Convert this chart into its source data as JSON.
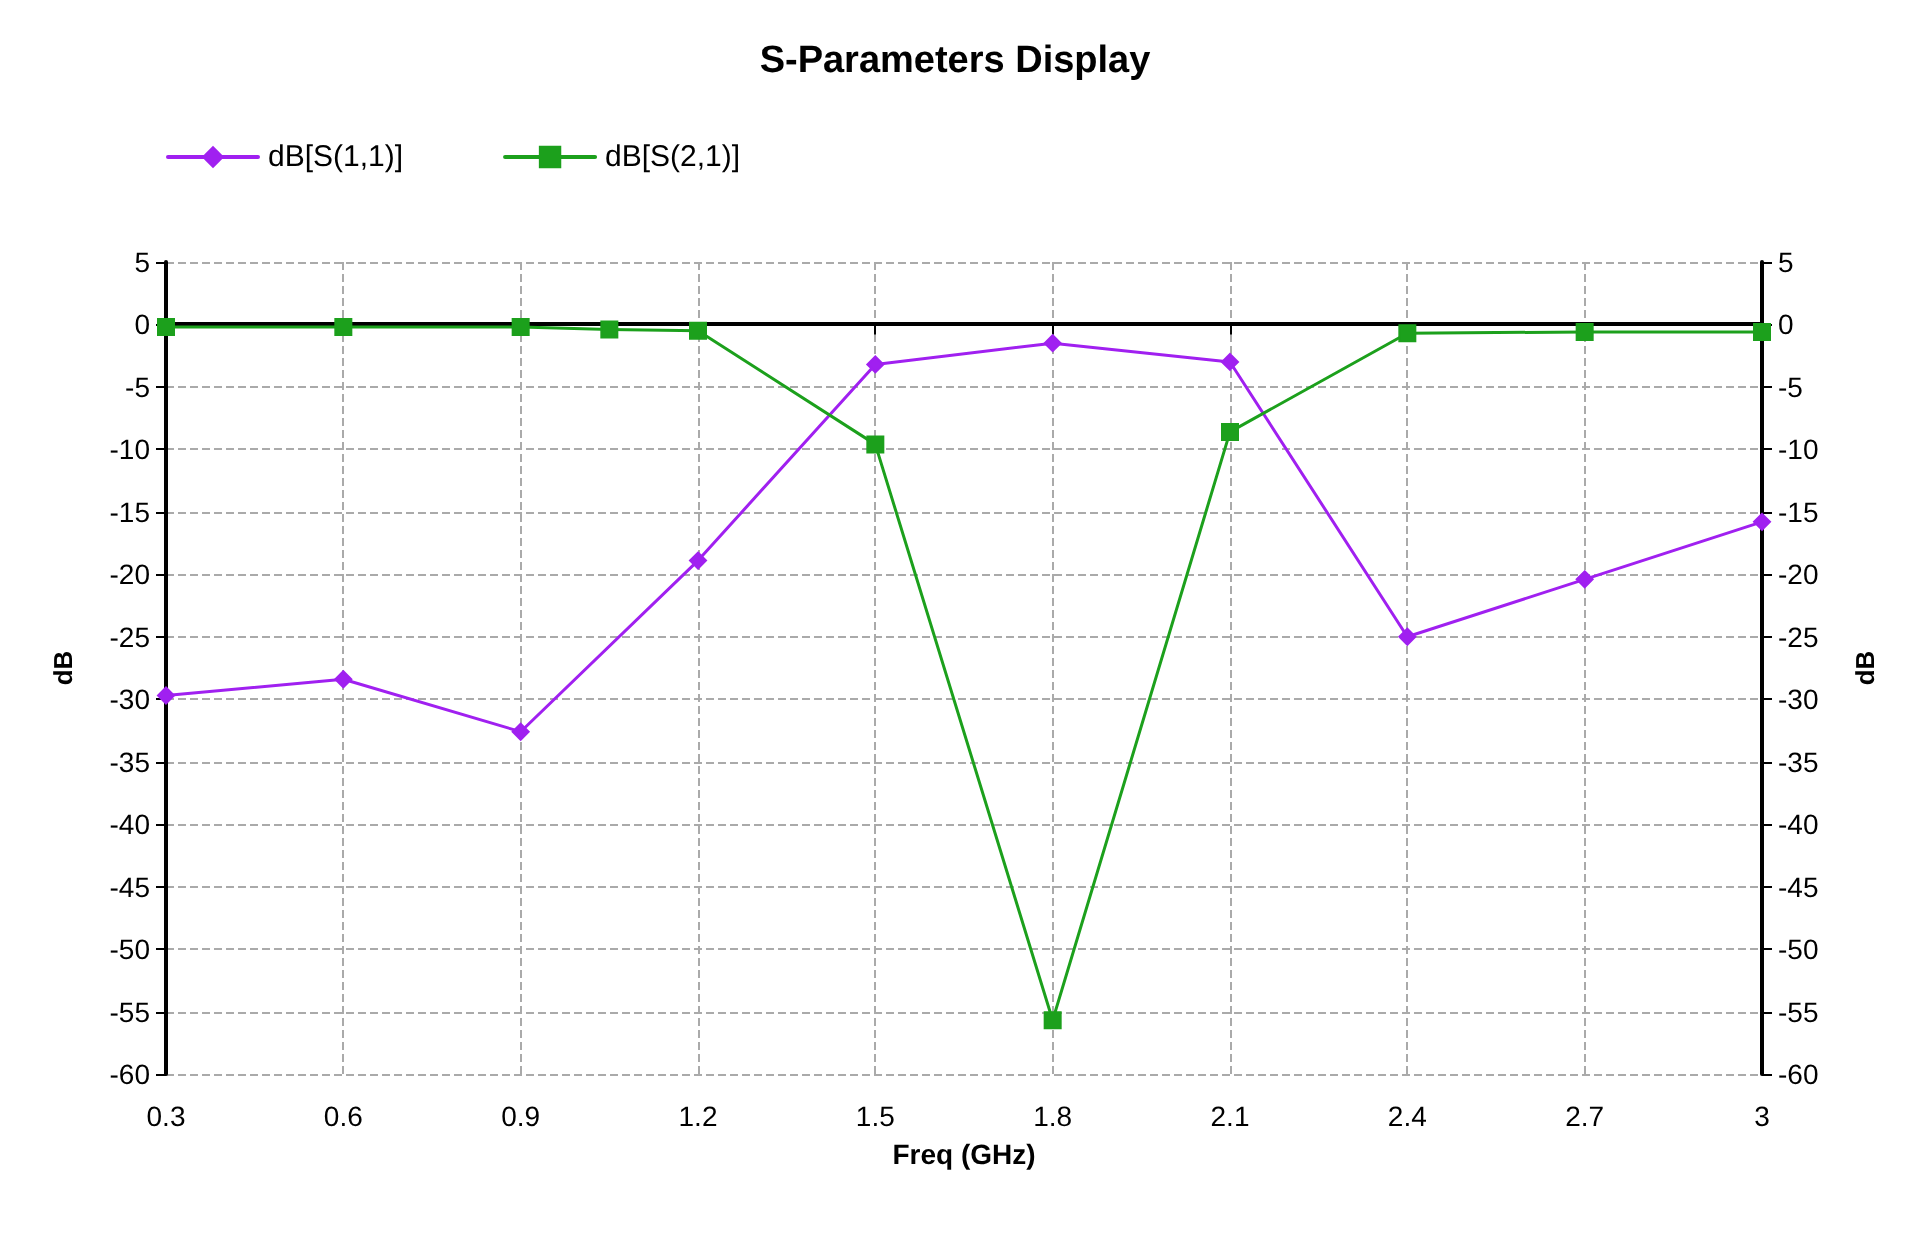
{
  "chart_data": {
    "type": "line",
    "title": "S-Parameters Display",
    "xlabel": "Freq (GHz)",
    "ylabel": "dB",
    "y2label": "dB",
    "xlim": [
      0.3,
      3
    ],
    "xticks": [
      0.3,
      0.6,
      0.9,
      1.2,
      1.5,
      1.8,
      2.1,
      2.4,
      2.7,
      3
    ],
    "ylim": [
      -60,
      5
    ],
    "yticks": [
      -60,
      -55,
      -50,
      -45,
      -40,
      -35,
      -30,
      -25,
      -20,
      -15,
      -10,
      -5,
      0,
      5
    ],
    "y2lim": [
      -60,
      5
    ],
    "y2ticks": [
      -60,
      -55,
      -50,
      -45,
      -40,
      -35,
      -30,
      -25,
      -20,
      -15,
      -10,
      -5,
      0,
      5
    ],
    "grid": true,
    "legend": "top left",
    "series": [
      {
        "name": "dB[S(1,1)]",
        "color": "#a020f0",
        "marker": "diamond",
        "x": [
          0.3,
          0.6,
          0.9,
          1.2,
          1.5,
          1.8,
          2.1,
          2.4,
          2.7,
          3
        ],
        "values": [
          -29.7,
          -28.4,
          -32.6,
          -18.9,
          -3.2,
          -1.5,
          -3.0,
          -25.0,
          -20.4,
          -15.8
        ]
      },
      {
        "name": "dB[S(2,1)]",
        "color": "#1ca01c",
        "marker": "square",
        "x": [
          0.3,
          0.6,
          0.9,
          1.05,
          1.2,
          1.5,
          1.8,
          2.1,
          2.4,
          2.7,
          3
        ],
        "values": [
          -0.2,
          -0.2,
          -0.2,
          -0.4,
          -0.5,
          -9.6,
          -55.7,
          -8.6,
          -0.7,
          -0.6,
          -0.6
        ]
      }
    ]
  }
}
